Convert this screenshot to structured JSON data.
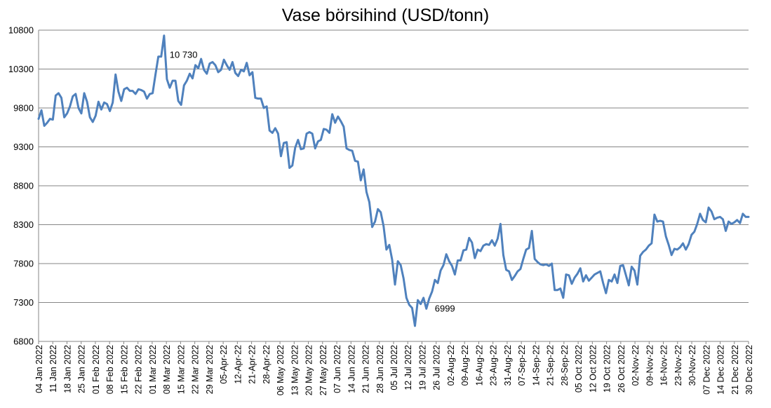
{
  "chart_data": {
    "type": "line",
    "title": "Vase börsihind (USD/tonn)",
    "xlabel": "",
    "ylabel": "",
    "ylim": [
      6800,
      10800
    ],
    "yticks": [
      "6800",
      "7300",
      "7800",
      "8300",
      "8800",
      "9300",
      "9800",
      "10300",
      "10800"
    ],
    "grid": true,
    "legend": "none",
    "line_color": "#4f81bd",
    "x_tick_labels": [
      "04 Jan 2022",
      "11 Jan 2022",
      "18 Jan 2022",
      "25 Jan 2022",
      "01 Feb 2022",
      "08 Feb 2022",
      "15 Feb 2022",
      "22 Feb 2022",
      "01 Mar 2022",
      "08 Mar 2022",
      "15 Mar 2022",
      "22 Mar 2022",
      "29 Mar 2022",
      "05-Apr-22",
      "12-Apr-22",
      "21-Apr-22",
      "28-Apr-22",
      "06 May 2022",
      "13 May 2022",
      "20 May 2022",
      "27 May 2022",
      "07 Jun 2022",
      "14 Jun 2022",
      "21 Jun 2022",
      "28 Jun 2022",
      "05 Jul 2022",
      "12 Jul 2022",
      "19 Jul 2022",
      "26 Jul 2022",
      "02-Aug-22",
      "09-Aug-22",
      "16-Aug-22",
      "23-Aug-22",
      "31-Aug-22",
      "07-Sep-22",
      "14-Sep-22",
      "21-Sep-22",
      "28-Sep-22",
      "05 Oct 2022",
      "12 Oct 2022",
      "19 Oct 2022",
      "26 Oct 2022",
      "02-Nov-22",
      "09-Nov-22",
      "16-Nov-22",
      "23-Nov-22",
      "30-Nov-22",
      "07 Dec 2022",
      "14 Dec 2022",
      "21 Dec 2022",
      "30 Dec 2022"
    ],
    "annotations": [
      {
        "text": "10 730",
        "index": 43
      },
      {
        "text": "6999",
        "index": 136
      }
    ],
    "series": [
      {
        "values": [
          9660,
          9770,
          9570,
          9610,
          9660,
          9650,
          9960,
          9990,
          9930,
          9680,
          9730,
          9820,
          9950,
          9980,
          9800,
          9730,
          9990,
          9880,
          9680,
          9620,
          9700,
          9880,
          9780,
          9870,
          9850,
          9760,
          9870,
          10230,
          10010,
          9890,
          10040,
          10060,
          10020,
          10020,
          9980,
          10040,
          10030,
          10010,
          9920,
          9980,
          9990,
          10230,
          10460,
          10460,
          10730,
          10170,
          10060,
          10150,
          10150,
          9890,
          9840,
          10090,
          10150,
          10240,
          10180,
          10350,
          10310,
          10430,
          10290,
          10240,
          10370,
          10390,
          10350,
          10260,
          10290,
          10420,
          10350,
          10290,
          10390,
          10250,
          10210,
          10290,
          10270,
          10380,
          10220,
          10260,
          9930,
          9920,
          9920,
          9800,
          9820,
          9510,
          9480,
          9540,
          9470,
          9180,
          9350,
          9360,
          9030,
          9060,
          9290,
          9390,
          9270,
          9280,
          9470,
          9490,
          9470,
          9280,
          9370,
          9390,
          9530,
          9520,
          9480,
          9720,
          9610,
          9690,
          9630,
          9560,
          9280,
          9260,
          9250,
          9120,
          9110,
          8870,
          9010,
          8720,
          8590,
          8270,
          8340,
          8500,
          8460,
          8280,
          7980,
          8040,
          7850,
          7530,
          7830,
          7780,
          7610,
          7360,
          7270,
          7230,
          6999,
          7330,
          7280,
          7360,
          7220,
          7350,
          7440,
          7590,
          7550,
          7710,
          7780,
          7920,
          7830,
          7770,
          7660,
          7840,
          7840,
          7970,
          7980,
          8130,
          8070,
          7870,
          7980,
          7960,
          8030,
          8050,
          8040,
          8100,
          8030,
          8120,
          8310,
          7910,
          7720,
          7700,
          7590,
          7640,
          7700,
          7730,
          7860,
          7980,
          8000,
          8220,
          7860,
          7820,
          7790,
          7780,
          7790,
          7770,
          7800,
          7460,
          7460,
          7480,
          7360,
          7660,
          7650,
          7540,
          7620,
          7670,
          7740,
          7570,
          7650,
          7580,
          7620,
          7660,
          7680,
          7700,
          7550,
          7420,
          7590,
          7570,
          7660,
          7550,
          7770,
          7780,
          7650,
          7520,
          7760,
          7710,
          7530,
          7900,
          7950,
          7980,
          8030,
          8060,
          8430,
          8340,
          8350,
          8340,
          8150,
          8040,
          7910,
          7990,
          7980,
          8010,
          8060,
          7980,
          8050,
          8170,
          8210,
          8310,
          8440,
          8360,
          8330,
          8520,
          8470,
          8370,
          8390,
          8400,
          8370,
          8220,
          8340,
          8310,
          8330,
          8360,
          8320,
          8440,
          8400,
          8400
        ]
      }
    ]
  }
}
